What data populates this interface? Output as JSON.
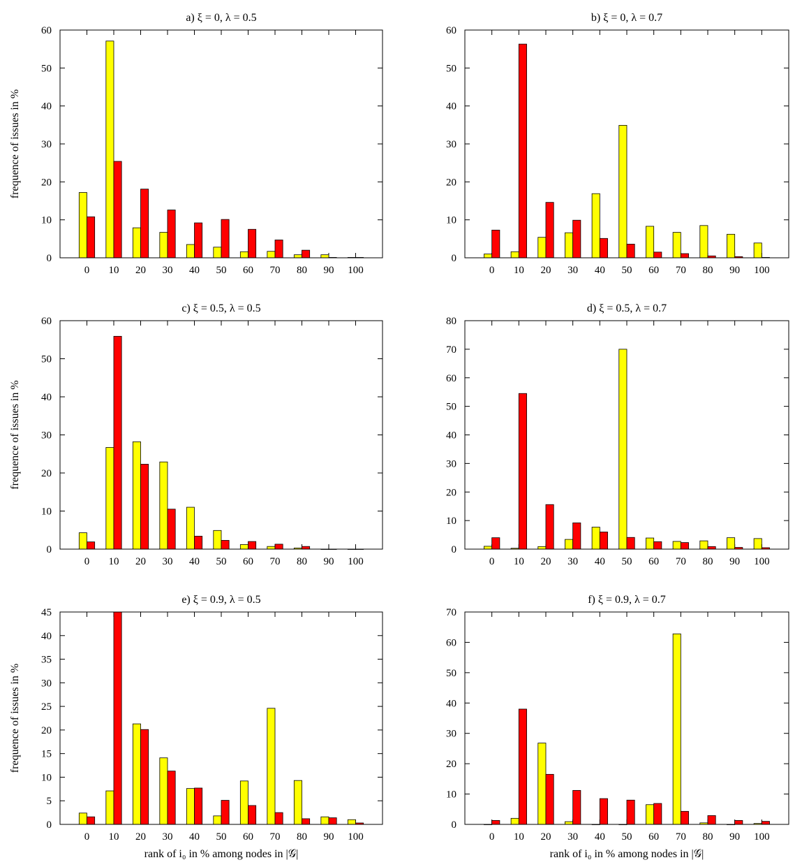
{
  "chart_data": [
    {
      "type": "bar",
      "title": "a) ξ = 0, λ = 0.5",
      "ylabel": "frequence of issues in %",
      "xlabel": "",
      "ylim": [
        0,
        60
      ],
      "yticks": [
        0,
        10,
        20,
        30,
        40,
        50,
        60
      ],
      "categories": [
        "0",
        "10",
        "20",
        "30",
        "40",
        "50",
        "60",
        "70",
        "80",
        "90",
        "100"
      ],
      "series": [
        {
          "color": "#ffff00",
          "values": [
            17.2,
            57.1,
            7.9,
            6.7,
            3.5,
            2.8,
            1.6,
            1.7,
            0.8,
            0.8,
            0.1
          ]
        },
        {
          "color": "#ff0000",
          "values": [
            10.8,
            25.4,
            18.1,
            12.6,
            9.2,
            10.1,
            7.5,
            4.7,
            2.0,
            0.1,
            0.1
          ]
        }
      ],
      "grid": false
    },
    {
      "type": "bar",
      "title": "b) ξ = 0, λ = 0.7",
      "ylabel": "",
      "xlabel": "",
      "ylim": [
        0,
        60
      ],
      "yticks": [
        0,
        10,
        20,
        30,
        40,
        50,
        60
      ],
      "categories": [
        "0",
        "10",
        "20",
        "30",
        "40",
        "50",
        "60",
        "70",
        "80",
        "90",
        "100"
      ],
      "series": [
        {
          "color": "#ffff00",
          "values": [
            1.0,
            1.6,
            5.4,
            6.6,
            16.9,
            34.9,
            8.3,
            6.7,
            8.5,
            6.2,
            3.9
          ]
        },
        {
          "color": "#ff0000",
          "values": [
            7.3,
            56.3,
            14.6,
            9.9,
            5.1,
            3.6,
            1.5,
            1.1,
            0.5,
            0.3,
            0.1
          ]
        }
      ],
      "grid": false
    },
    {
      "type": "bar",
      "title": "c) ξ = 0.5, λ = 0.5",
      "ylabel": "frequence of issues in %",
      "xlabel": "",
      "ylim": [
        0,
        60
      ],
      "yticks": [
        0,
        10,
        20,
        30,
        40,
        50,
        60
      ],
      "categories": [
        "0",
        "10",
        "20",
        "30",
        "40",
        "50",
        "60",
        "70",
        "80",
        "90",
        "100"
      ],
      "series": [
        {
          "color": "#ffff00",
          "values": [
            4.3,
            26.7,
            28.2,
            22.9,
            11.0,
            4.9,
            1.2,
            0.7,
            0.3,
            0.0,
            0.0
          ]
        },
        {
          "color": "#ff0000",
          "values": [
            1.9,
            55.9,
            22.3,
            10.5,
            3.4,
            2.3,
            2.0,
            1.3,
            0.7,
            0.0,
            0.0
          ]
        }
      ],
      "grid": false
    },
    {
      "type": "bar",
      "title": "d) ξ = 0.5, λ = 0.7",
      "ylabel": "",
      "xlabel": "",
      "ylim": [
        0,
        80
      ],
      "yticks": [
        0,
        10,
        20,
        30,
        40,
        50,
        60,
        70,
        80
      ],
      "categories": [
        "0",
        "10",
        "20",
        "30",
        "40",
        "50",
        "60",
        "70",
        "80",
        "90",
        "100"
      ],
      "series": [
        {
          "color": "#ffff00",
          "values": [
            1.0,
            0.3,
            0.9,
            3.4,
            7.7,
            70.0,
            3.9,
            2.7,
            2.9,
            4.0,
            3.7
          ]
        },
        {
          "color": "#ff0000",
          "values": [
            4.0,
            54.5,
            15.6,
            9.2,
            6.0,
            4.1,
            2.6,
            2.3,
            0.9,
            0.6,
            0.5
          ]
        }
      ],
      "grid": false
    },
    {
      "type": "bar",
      "title": "e) ξ = 0.9, λ = 0.5",
      "ylabel": "frequence of issues in %",
      "xlabel": "rank of i₀ in % among nodes in |𝒢|",
      "ylim": [
        0,
        45
      ],
      "yticks": [
        0,
        5,
        10,
        15,
        20,
        25,
        30,
        35,
        40,
        45
      ],
      "categories": [
        "0",
        "10",
        "20",
        "30",
        "40",
        "50",
        "60",
        "70",
        "80",
        "90",
        "100"
      ],
      "series": [
        {
          "color": "#ffff00",
          "values": [
            2.4,
            7.1,
            21.3,
            14.1,
            7.6,
            1.8,
            9.2,
            24.6,
            9.3,
            1.6,
            1.0
          ]
        },
        {
          "color": "#ff0000",
          "values": [
            1.6,
            45.0,
            20.1,
            11.3,
            7.7,
            5.1,
            4.0,
            2.5,
            1.2,
            1.4,
            0.3
          ]
        }
      ],
      "grid": false
    },
    {
      "type": "bar",
      "title": "f) ξ = 0.9, λ = 0.7",
      "ylabel": "",
      "xlabel": "rank of i₀ in % among nodes in |𝒢|",
      "ylim": [
        0,
        70
      ],
      "yticks": [
        0,
        10,
        20,
        30,
        40,
        50,
        60,
        70
      ],
      "categories": [
        "0",
        "10",
        "20",
        "30",
        "40",
        "50",
        "60",
        "70",
        "80",
        "90",
        "100"
      ],
      "series": [
        {
          "color": "#ffff00",
          "values": [
            0.0,
            2.0,
            26.8,
            0.9,
            0.0,
            0.0,
            6.5,
            62.8,
            0.5,
            0.0,
            0.3
          ]
        },
        {
          "color": "#ff0000",
          "values": [
            1.3,
            38.0,
            16.5,
            11.2,
            8.5,
            8.0,
            6.9,
            4.3,
            2.9,
            1.3,
            1.0
          ]
        }
      ],
      "grid": false
    }
  ]
}
